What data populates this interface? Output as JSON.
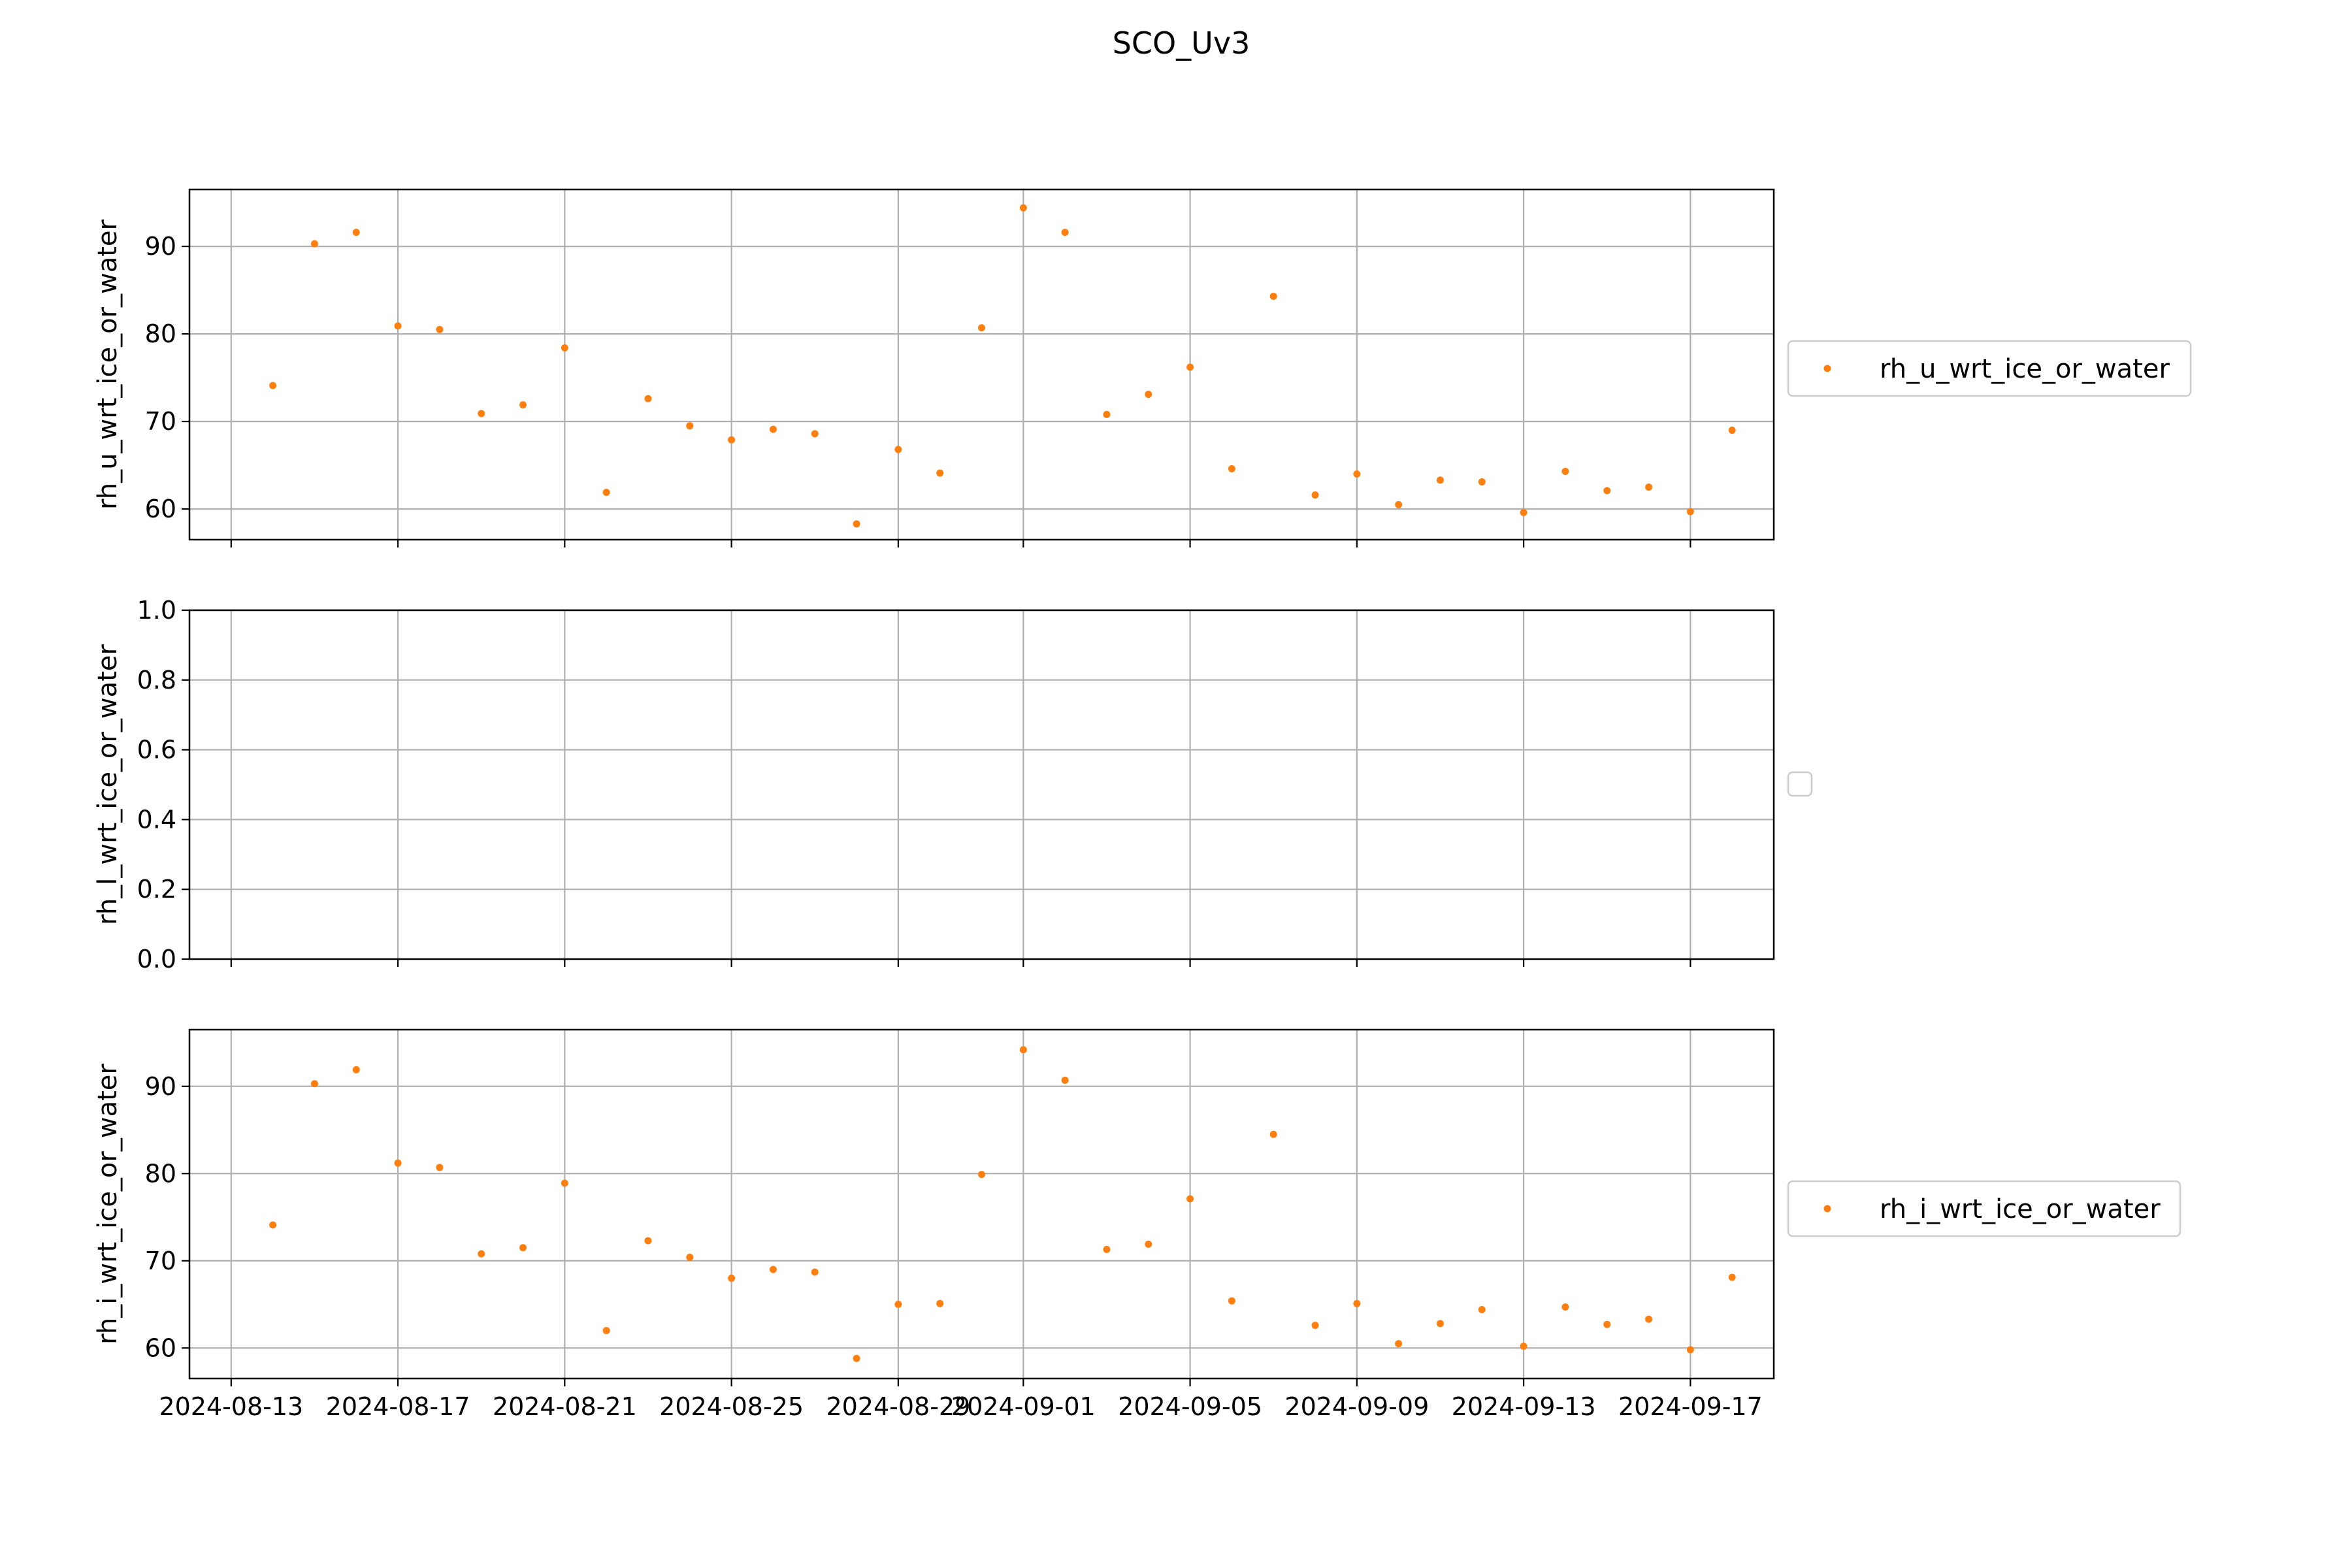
{
  "figure": {
    "title": "SCO_Uv3"
  },
  "colors": {
    "series": "#ff7f0e",
    "grid": "#b0b0b0"
  },
  "chart_data": [
    {
      "type": "scatter",
      "ylabel": "rh_u_wrt_ice_or_water",
      "xlabel": "",
      "x_ticks": [
        "2024-08-13",
        "2024-08-17",
        "2024-08-21",
        "2024-08-25",
        "2024-08-29",
        "2024-09-01",
        "2024-09-05",
        "2024-09-09",
        "2024-09-13",
        "2024-09-17"
      ],
      "x_tick_labels_visible": false,
      "xlim": [
        "2024-08-12",
        "2024-09-19"
      ],
      "ylim": [
        56.5,
        96.5
      ],
      "y_ticks": [
        60,
        70,
        80,
        90
      ],
      "y_tick_labels": [
        "60",
        "70",
        "80",
        "90"
      ],
      "grid": true,
      "legend": "right-outside",
      "series": [
        {
          "name": "rh_u_wrt_ice_or_water",
          "x": [
            "2024-08-14",
            "2024-08-15",
            "2024-08-16",
            "2024-08-17",
            "2024-08-18",
            "2024-08-19",
            "2024-08-20",
            "2024-08-21",
            "2024-08-22",
            "2024-08-23",
            "2024-08-24",
            "2024-08-25",
            "2024-08-26",
            "2024-08-27",
            "2024-08-28",
            "2024-08-29",
            "2024-08-30",
            "2024-08-31",
            "2024-09-01",
            "2024-09-02",
            "2024-09-03",
            "2024-09-04",
            "2024-09-05",
            "2024-09-06",
            "2024-09-07",
            "2024-09-08",
            "2024-09-09",
            "2024-09-10",
            "2024-09-11",
            "2024-09-12",
            "2024-09-13",
            "2024-09-14",
            "2024-09-15",
            "2024-09-16",
            "2024-09-17",
            "2024-09-18"
          ],
          "y": [
            74.1,
            90.3,
            91.6,
            80.9,
            80.5,
            70.9,
            71.9,
            78.4,
            61.9,
            72.6,
            69.5,
            67.9,
            69.1,
            68.6,
            58.3,
            66.8,
            64.1,
            80.7,
            94.4,
            91.6,
            70.8,
            73.1,
            76.2,
            64.6,
            84.3,
            61.6,
            64.0,
            60.5,
            63.3,
            63.1,
            59.6,
            64.3,
            62.1,
            62.5,
            59.7,
            69.0
          ]
        }
      ]
    },
    {
      "type": "scatter",
      "ylabel": "rh_l_wrt_ice_or_water",
      "xlabel": "",
      "x_ticks": [
        "2024-08-13",
        "2024-08-17",
        "2024-08-21",
        "2024-08-25",
        "2024-08-29",
        "2024-09-01",
        "2024-09-05",
        "2024-09-09",
        "2024-09-13",
        "2024-09-17"
      ],
      "x_tick_labels_visible": false,
      "xlim": [
        "2024-08-12",
        "2024-09-19"
      ],
      "ylim": [
        0.0,
        1.0
      ],
      "y_ticks": [
        0.0,
        0.2,
        0.4,
        0.6,
        0.8,
        1.0
      ],
      "y_tick_labels": [
        "0.0",
        "0.2",
        "0.4",
        "0.6",
        "0.8",
        "1.0"
      ],
      "grid": true,
      "legend": "right-outside-empty",
      "series": []
    },
    {
      "type": "scatter",
      "ylabel": "rh_i_wrt_ice_or_water",
      "xlabel": "",
      "x_ticks": [
        "2024-08-13",
        "2024-08-17",
        "2024-08-21",
        "2024-08-25",
        "2024-08-29",
        "2024-09-01",
        "2024-09-05",
        "2024-09-09",
        "2024-09-13",
        "2024-09-17"
      ],
      "x_tick_labels": [
        "2024-08-13",
        "2024-08-17",
        "2024-08-21",
        "2024-08-25",
        "2024-08-29",
        "2024-09-01",
        "2024-09-05",
        "2024-09-09",
        "2024-09-13",
        "2024-09-17"
      ],
      "x_tick_labels_visible": true,
      "xlim": [
        "2024-08-12",
        "2024-09-19"
      ],
      "ylim": [
        56.5,
        96.5
      ],
      "y_ticks": [
        60,
        70,
        80,
        90
      ],
      "y_tick_labels": [
        "60",
        "70",
        "80",
        "90"
      ],
      "grid": true,
      "legend": "right-outside",
      "series": [
        {
          "name": "rh_i_wrt_ice_or_water",
          "x": [
            "2024-08-14",
            "2024-08-15",
            "2024-08-16",
            "2024-08-17",
            "2024-08-18",
            "2024-08-19",
            "2024-08-20",
            "2024-08-21",
            "2024-08-22",
            "2024-08-23",
            "2024-08-24",
            "2024-08-25",
            "2024-08-26",
            "2024-08-27",
            "2024-08-28",
            "2024-08-29",
            "2024-08-30",
            "2024-08-31",
            "2024-09-01",
            "2024-09-02",
            "2024-09-03",
            "2024-09-04",
            "2024-09-05",
            "2024-09-06",
            "2024-09-07",
            "2024-09-08",
            "2024-09-09",
            "2024-09-10",
            "2024-09-11",
            "2024-09-12",
            "2024-09-13",
            "2024-09-14",
            "2024-09-15",
            "2024-09-16",
            "2024-09-17",
            "2024-09-18"
          ],
          "y": [
            74.1,
            90.3,
            91.9,
            81.2,
            80.7,
            70.8,
            71.5,
            78.9,
            62.0,
            72.3,
            70.4,
            68.0,
            69.0,
            68.7,
            58.8,
            65.0,
            65.1,
            79.9,
            94.2,
            90.7,
            71.3,
            71.9,
            77.1,
            65.4,
            84.5,
            62.6,
            65.1,
            60.5,
            62.8,
            64.4,
            60.2,
            64.7,
            62.7,
            63.3,
            59.8,
            68.1
          ]
        }
      ]
    }
  ]
}
